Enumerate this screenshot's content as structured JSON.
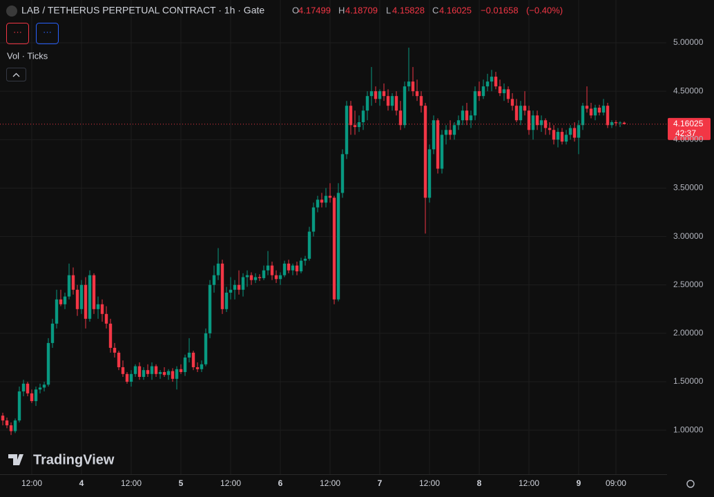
{
  "header": {
    "title": "LAB / TETHERUS PERPETUAL CONTRACT · 1h · Gate",
    "o_label": "O",
    "h_label": "H",
    "l_label": "L",
    "c_label": "C",
    "change": "−0.01658",
    "change_pct": "(−0.40%)",
    "button_1": "···",
    "button_2": "···",
    "indicator": "Vol · Ticks",
    "brand": "TradingView",
    "countdown": "42:37"
  },
  "chart_data": {
    "type": "candlestick",
    "up_color": "#089981",
    "down_color": "#f23645",
    "grid": true,
    "ylim": [
      0.545,
      5.442
    ],
    "yticks": [
      {
        "value": 1,
        "label": "1.00000"
      },
      {
        "value": 1.5,
        "label": "1.50000"
      },
      {
        "value": 2,
        "label": "2.00000"
      },
      {
        "value": 2.5,
        "label": "2.50000"
      },
      {
        "value": 3,
        "label": "3.00000"
      },
      {
        "value": 3.5,
        "label": "3.50000"
      },
      {
        "value": 4,
        "label": "4.00000"
      },
      {
        "value": 4.5,
        "label": "4.50000"
      },
      {
        "value": 5,
        "label": "5.00000"
      }
    ],
    "xlim": [
      -0.67,
      160.17
    ],
    "xticks": [
      {
        "value": 7,
        "label": "12:00"
      },
      {
        "value": 19,
        "label": "4"
      },
      {
        "value": 31,
        "label": "12:00"
      },
      {
        "value": 43,
        "label": "5"
      },
      {
        "value": 55,
        "label": "12:00"
      },
      {
        "value": 67,
        "label": "6"
      },
      {
        "value": 79,
        "label": "12:00"
      },
      {
        "value": 91,
        "label": "7"
      },
      {
        "value": 103,
        "label": "12:00"
      },
      {
        "value": 115,
        "label": "8"
      },
      {
        "value": 127,
        "label": "12:00"
      },
      {
        "value": 139,
        "label": "9"
      },
      {
        "value": 148,
        "label": "09:00"
      }
    ],
    "ohlc": [
      [
        1.15,
        1.18,
        1.05,
        1.1
      ],
      [
        1.1,
        1.13,
        1.02,
        1.05
      ],
      [
        1.05,
        1.08,
        0.95,
        0.99
      ],
      [
        0.99,
        1.12,
        0.97,
        1.1
      ],
      [
        1.1,
        1.45,
        1.08,
        1.4
      ],
      [
        1.4,
        1.52,
        1.35,
        1.48
      ],
      [
        1.48,
        1.5,
        1.35,
        1.38
      ],
      [
        1.38,
        1.42,
        1.28,
        1.3
      ],
      [
        1.3,
        1.45,
        1.25,
        1.42
      ],
      [
        1.42,
        1.48,
        1.38,
        1.44
      ],
      [
        1.44,
        1.5,
        1.4,
        1.47
      ],
      [
        1.47,
        1.95,
        1.45,
        1.9
      ],
      [
        1.9,
        2.15,
        1.85,
        2.1
      ],
      [
        2.1,
        2.45,
        2.05,
        2.35
      ],
      [
        2.35,
        2.45,
        2.28,
        2.3
      ],
      [
        2.3,
        2.42,
        2.25,
        2.38
      ],
      [
        2.38,
        2.72,
        2.35,
        2.6
      ],
      [
        2.6,
        2.68,
        2.4,
        2.45
      ],
      [
        2.45,
        2.5,
        2.18,
        2.25
      ],
      [
        2.25,
        2.55,
        2.2,
        2.5
      ],
      [
        2.5,
        2.58,
        2.05,
        2.15
      ],
      [
        2.15,
        2.65,
        2.12,
        2.6
      ],
      [
        2.6,
        2.62,
        2.2,
        2.25
      ],
      [
        2.25,
        2.38,
        2.15,
        2.3
      ],
      [
        2.3,
        2.35,
        2.12,
        2.2
      ],
      [
        2.2,
        2.28,
        2.05,
        2.1
      ],
      [
        2.1,
        2.15,
        1.8,
        1.85
      ],
      [
        1.85,
        1.9,
        1.75,
        1.8
      ],
      [
        1.8,
        1.82,
        1.62,
        1.65
      ],
      [
        1.65,
        1.72,
        1.55,
        1.58
      ],
      [
        1.58,
        1.6,
        1.48,
        1.5
      ],
      [
        1.5,
        1.62,
        1.45,
        1.58
      ],
      [
        1.58,
        1.68,
        1.55,
        1.66
      ],
      [
        1.66,
        1.7,
        1.52,
        1.55
      ],
      [
        1.55,
        1.65,
        1.52,
        1.62
      ],
      [
        1.62,
        1.68,
        1.55,
        1.58
      ],
      [
        1.58,
        1.7,
        1.52,
        1.66
      ],
      [
        1.66,
        1.68,
        1.55,
        1.58
      ],
      [
        1.58,
        1.62,
        1.53,
        1.6
      ],
      [
        1.6,
        1.65,
        1.55,
        1.57
      ],
      [
        1.57,
        1.63,
        1.52,
        1.61
      ],
      [
        1.61,
        1.64,
        1.5,
        1.53
      ],
      [
        1.53,
        1.66,
        1.42,
        1.63
      ],
      [
        1.63,
        1.68,
        1.58,
        1.6
      ],
      [
        1.6,
        1.78,
        1.56,
        1.75
      ],
      [
        1.75,
        1.95,
        1.7,
        1.8
      ],
      [
        1.8,
        1.82,
        1.62,
        1.65
      ],
      [
        1.65,
        1.7,
        1.6,
        1.63
      ],
      [
        1.63,
        1.72,
        1.6,
        1.68
      ],
      [
        1.68,
        2.05,
        1.66,
        2
      ],
      [
        2,
        2.55,
        1.95,
        2.5
      ],
      [
        2.5,
        2.7,
        2.42,
        2.6
      ],
      [
        2.6,
        2.88,
        2.55,
        2.72
      ],
      [
        2.72,
        2.76,
        2.2,
        2.25
      ],
      [
        2.25,
        2.48,
        2.22,
        2.42
      ],
      [
        2.42,
        2.58,
        2.35,
        2.45
      ],
      [
        2.45,
        2.55,
        2.35,
        2.5
      ],
      [
        2.5,
        2.65,
        2.4,
        2.45
      ],
      [
        2.45,
        2.62,
        2.38,
        2.58
      ],
      [
        2.58,
        2.65,
        2.48,
        2.6
      ],
      [
        2.6,
        2.63,
        2.5,
        2.55
      ],
      [
        2.55,
        2.62,
        2.52,
        2.58
      ],
      [
        2.58,
        2.61,
        2.54,
        2.57
      ],
      [
        2.57,
        2.7,
        2.55,
        2.65
      ],
      [
        2.65,
        2.85,
        2.6,
        2.7
      ],
      [
        2.7,
        2.74,
        2.55,
        2.6
      ],
      [
        2.6,
        2.65,
        2.52,
        2.56
      ],
      [
        2.56,
        2.63,
        2.5,
        2.6
      ],
      [
        2.6,
        2.75,
        2.58,
        2.72
      ],
      [
        2.72,
        2.76,
        2.62,
        2.65
      ],
      [
        2.65,
        2.72,
        2.6,
        2.7
      ],
      [
        2.7,
        2.74,
        2.6,
        2.64
      ],
      [
        2.64,
        2.78,
        2.62,
        2.75
      ],
      [
        2.75,
        2.8,
        2.7,
        2.77
      ],
      [
        2.77,
        3.1,
        2.75,
        3.05
      ],
      [
        3.05,
        3.35,
        3,
        3.3
      ],
      [
        3.3,
        3.42,
        3.25,
        3.38
      ],
      [
        3.38,
        3.45,
        3.3,
        3.35
      ],
      [
        3.35,
        3.5,
        3.3,
        3.42
      ],
      [
        3.42,
        3.55,
        3.35,
        3.4
      ],
      [
        3.4,
        3.42,
        2.3,
        2.35
      ],
      [
        2.35,
        3.55,
        2.33,
        3.45
      ],
      [
        3.45,
        3.9,
        3.4,
        3.85
      ],
      [
        3.85,
        4.4,
        3.8,
        4.35
      ],
      [
        4.35,
        4.4,
        4.05,
        4.15
      ],
      [
        4.15,
        4.3,
        4.05,
        4.13
      ],
      [
        4.13,
        4.25,
        4.08,
        4.18
      ],
      [
        4.18,
        4.35,
        4.1,
        4.3
      ],
      [
        4.3,
        4.5,
        4.2,
        4.45
      ],
      [
        4.45,
        4.75,
        4.35,
        4.5
      ],
      [
        4.5,
        4.55,
        4.38,
        4.42
      ],
      [
        4.42,
        4.52,
        4.35,
        4.5
      ],
      [
        4.5,
        4.58,
        4.4,
        4.45
      ],
      [
        4.45,
        4.52,
        4.3,
        4.35
      ],
      [
        4.35,
        4.48,
        4.3,
        4.45
      ],
      [
        4.45,
        4.5,
        4.25,
        4.3
      ],
      [
        4.3,
        4.4,
        4.1,
        4.15
      ],
      [
        4.15,
        4.6,
        4.12,
        4.55
      ],
      [
        4.55,
        4.95,
        4.5,
        4.6
      ],
      [
        4.6,
        4.75,
        4.45,
        4.5
      ],
      [
        4.5,
        4.62,
        4.4,
        4.45
      ],
      [
        4.45,
        4.5,
        4.28,
        4.35
      ],
      [
        4.35,
        4.38,
        3.03,
        3.4
      ],
      [
        3.4,
        3.95,
        3.35,
        3.9
      ],
      [
        3.9,
        4.25,
        3.85,
        4.2
      ],
      [
        4.2,
        4.22,
        3.65,
        3.7
      ],
      [
        3.7,
        4.1,
        3.65,
        4.05
      ],
      [
        4.05,
        4.15,
        3.95,
        4.1
      ],
      [
        4.1,
        4.2,
        4,
        4.05
      ],
      [
        4.05,
        4.18,
        4,
        4.15
      ],
      [
        4.15,
        4.25,
        4.1,
        4.2
      ],
      [
        4.2,
        4.35,
        4.15,
        4.3
      ],
      [
        4.3,
        4.38,
        4.15,
        4.2
      ],
      [
        4.2,
        4.3,
        4.12,
        4.25
      ],
      [
        4.25,
        4.55,
        4.2,
        4.5
      ],
      [
        4.5,
        4.6,
        4.4,
        4.45
      ],
      [
        4.45,
        4.62,
        4.42,
        4.55
      ],
      [
        4.55,
        4.68,
        4.5,
        4.6
      ],
      [
        4.6,
        4.72,
        4.5,
        4.65
      ],
      [
        4.65,
        4.7,
        4.52,
        4.55
      ],
      [
        4.55,
        4.62,
        4.45,
        4.48
      ],
      [
        4.48,
        4.58,
        4.4,
        4.52
      ],
      [
        4.52,
        4.55,
        4.38,
        4.42
      ],
      [
        4.42,
        4.48,
        4.3,
        4.35
      ],
      [
        4.35,
        4.42,
        4.18,
        4.2
      ],
      [
        4.2,
        4.4,
        4.15,
        4.35
      ],
      [
        4.35,
        4.5,
        4.25,
        4.3
      ],
      [
        4.3,
        4.35,
        4.05,
        4.1
      ],
      [
        4.1,
        4.3,
        4,
        4.25
      ],
      [
        4.25,
        4.3,
        4.1,
        4.15
      ],
      [
        4.15,
        4.25,
        4.08,
        4.2
      ],
      [
        4.2,
        4.22,
        4.05,
        4.12
      ],
      [
        4.12,
        4.18,
        4.05,
        4.1
      ],
      [
        4.1,
        4.15,
        3.95,
        4
      ],
      [
        4,
        4.12,
        3.92,
        4.08
      ],
      [
        4.08,
        4.12,
        3.95,
        3.98
      ],
      [
        3.98,
        4.1,
        3.95,
        4.05
      ],
      [
        4.05,
        4.15,
        4,
        4.12
      ],
      [
        4.12,
        4.18,
        3.98,
        4.02
      ],
      [
        4.02,
        4.2,
        3.85,
        4.15
      ],
      [
        4.15,
        4.38,
        4.1,
        4.35
      ],
      [
        4.35,
        4.55,
        4.28,
        4.32
      ],
      [
        4.32,
        4.38,
        4.22,
        4.25
      ],
      [
        4.25,
        4.36,
        4.2,
        4.33
      ],
      [
        4.33,
        4.36,
        4.25,
        4.28
      ],
      [
        4.28,
        4.42,
        4.25,
        4.35
      ],
      [
        4.35,
        4.38,
        4.12,
        4.15
      ],
      [
        4.15,
        4.2,
        4.12,
        4.18
      ],
      [
        4.18,
        4.2,
        4.14,
        4.17
      ],
      [
        4.17,
        4.19,
        4.13,
        4.17683
      ],
      [
        4.17499,
        4.18709,
        4.15828,
        4.16025
      ]
    ]
  }
}
